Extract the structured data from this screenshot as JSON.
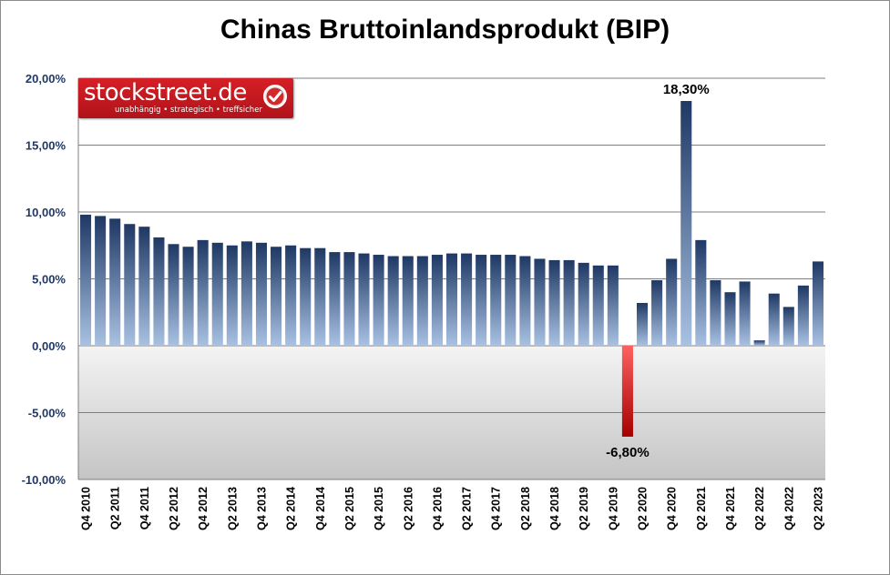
{
  "chart_data": {
    "type": "bar",
    "title": "Chinas Bruttoinlandsprodukt (BIP)",
    "ylim": [
      -10,
      20
    ],
    "yticks": [
      -10,
      -5,
      0,
      5,
      10,
      15,
      20
    ],
    "ytick_labels": [
      "-10,00%",
      "-5,00%",
      "0,00%",
      "5,00%",
      "10,00%",
      "15,00%",
      "20,00%"
    ],
    "grid": true,
    "categories": [
      "Q4 2010",
      "Q1 2011",
      "Q2 2011",
      "Q3 2011",
      "Q4 2011",
      "Q1 2012",
      "Q2 2012",
      "Q3 2012",
      "Q4 2012",
      "Q1 2013",
      "Q2 2013",
      "Q3 2013",
      "Q4 2013",
      "Q1 2014",
      "Q2 2014",
      "Q3 2014",
      "Q4 2014",
      "Q1 2015",
      "Q2 2015",
      "Q3 2015",
      "Q4 2015",
      "Q1 2016",
      "Q2 2016",
      "Q3 2016",
      "Q4 2016",
      "Q1 2017",
      "Q2 2017",
      "Q3 2017",
      "Q4 2017",
      "Q1 2018",
      "Q2 2018",
      "Q3 2018",
      "Q4 2018",
      "Q1 2019",
      "Q2 2019",
      "Q3 2019",
      "Q4 2019",
      "Q1 2020",
      "Q2 2020",
      "Q3 2020",
      "Q4 2020",
      "Q1 2021",
      "Q2 2021",
      "Q3 2021",
      "Q4 2021",
      "Q1 2022",
      "Q2 2022",
      "Q3 2022",
      "Q4 2022",
      "Q1 2023",
      "Q2 2023"
    ],
    "xtick_labels": [
      "Q4 2010",
      "",
      "Q2 2011",
      "",
      "Q4 2011",
      "",
      "Q2 2012",
      "",
      "Q4 2012",
      "",
      "Q2 2013",
      "",
      "Q4 2013",
      "",
      "Q2 2014",
      "",
      "Q4 2014",
      "",
      "Q2 2015",
      "",
      "Q4 2015",
      "",
      "Q2 2016",
      "",
      "Q4 2016",
      "",
      "Q2 2017",
      "",
      "Q4 2017",
      "",
      "Q2 2018",
      "",
      "Q4 2018",
      "",
      "Q2 2019",
      "",
      "Q4 2019",
      "",
      "Q2 2020",
      "",
      "Q4 2020",
      "",
      "Q2 2021",
      "",
      "Q4 2021",
      "",
      "Q2 2022",
      "",
      "Q4 2022",
      "",
      "Q2 2023"
    ],
    "values": [
      9.8,
      9.7,
      9.5,
      9.1,
      8.9,
      8.1,
      7.6,
      7.4,
      7.9,
      7.7,
      7.5,
      7.8,
      7.7,
      7.4,
      7.5,
      7.3,
      7.3,
      7.0,
      7.0,
      6.9,
      6.8,
      6.7,
      6.7,
      6.7,
      6.8,
      6.9,
      6.9,
      6.8,
      6.8,
      6.8,
      6.7,
      6.5,
      6.4,
      6.4,
      6.2,
      6.0,
      6.0,
      -6.8,
      3.2,
      4.9,
      6.5,
      18.3,
      7.9,
      4.9,
      4.0,
      4.8,
      0.4,
      3.9,
      2.9,
      4.5,
      6.3
    ],
    "annotations": [
      {
        "index": 41,
        "label": "18,30%"
      },
      {
        "index": 37,
        "label": "-6,80%"
      }
    ],
    "colors": {
      "positive_top": "#1f3864",
      "positive_bottom": "#a9c2e3",
      "negative_top": "#ff5050",
      "negative_bottom": "#a50000",
      "axis_text": "#1f3864"
    }
  },
  "logo": {
    "name": "stockstreet.de",
    "tagline": "unabhängig • strategisch • treffsicher"
  }
}
